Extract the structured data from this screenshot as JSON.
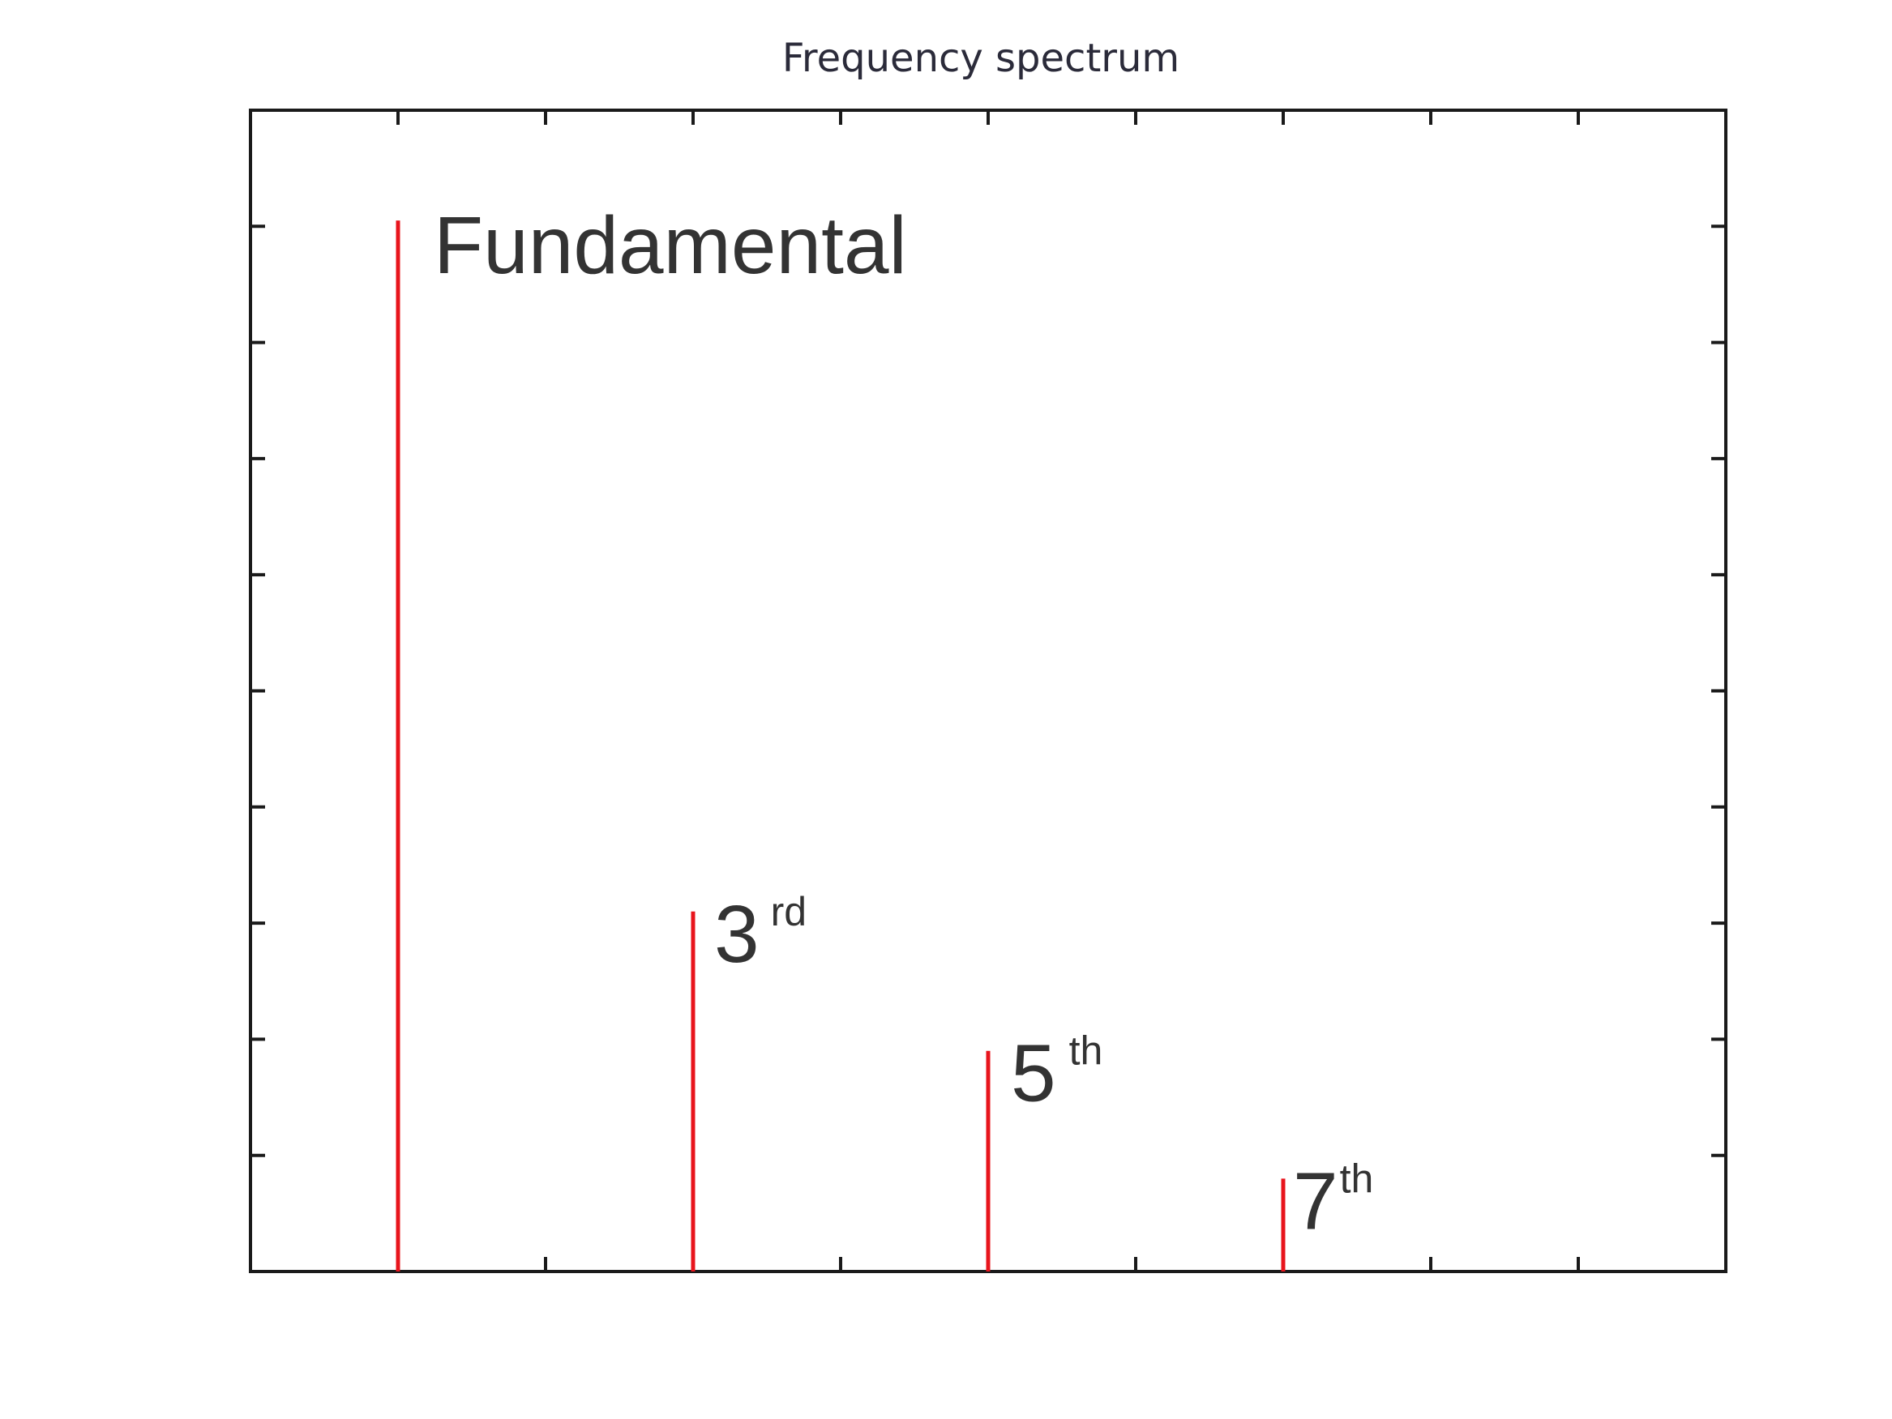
{
  "chart_data": {
    "type": "bar",
    "title": "Frequency spectrum",
    "xlabel": "",
    "ylabel": "",
    "x": [
      1,
      3,
      5,
      7
    ],
    "values": [
      0.905,
      0.31,
      0.19,
      0.08
    ],
    "xlim": [
      0,
      10
    ],
    "ylim": [
      0,
      1
    ],
    "grid": false,
    "series_color": "#e8141c",
    "annotations": [
      {
        "base": "Fundamental",
        "sup": ""
      },
      {
        "base": "3",
        "sup": "rd"
      },
      {
        "base": "5",
        "sup": "th"
      },
      {
        "base": "7",
        "sup": "th"
      }
    ]
  }
}
